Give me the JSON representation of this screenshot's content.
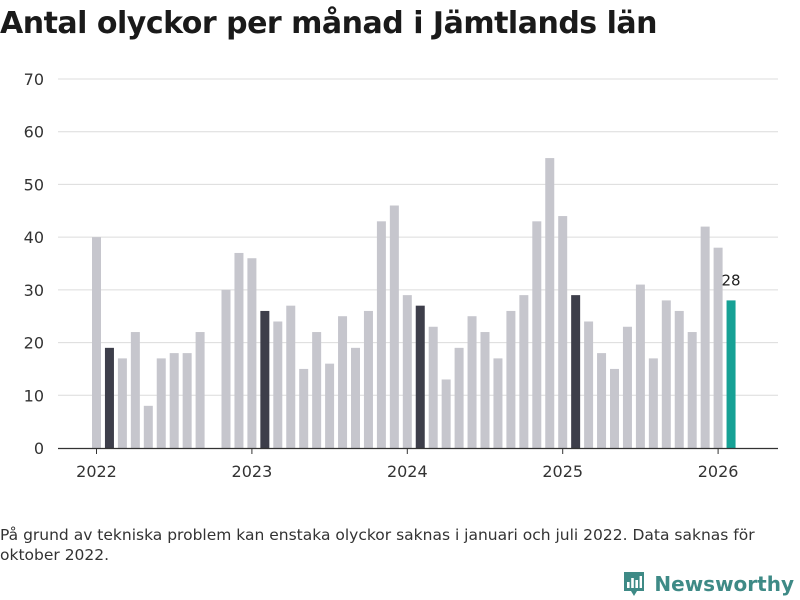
{
  "chart_data": {
    "type": "bar",
    "title": "Antal olyckor per månad i Jämtlands län",
    "xlabel": "",
    "ylabel": "",
    "ylim": [
      0,
      70
    ],
    "yticks": [
      0,
      10,
      20,
      30,
      40,
      50,
      60,
      70
    ],
    "xtick_labels": [
      {
        "label": "2022",
        "month_index": 0
      },
      {
        "label": "2023",
        "month_index": 12
      },
      {
        "label": "2024",
        "month_index": 24
      },
      {
        "label": "2025",
        "month_index": 36
      },
      {
        "label": "2026",
        "month_index": 48
      }
    ],
    "series": [
      {
        "name": "Antal olyckor",
        "values": [
          40,
          19,
          17,
          22,
          8,
          17,
          18,
          18,
          22,
          null,
          30,
          37,
          36,
          26,
          24,
          27,
          15,
          22,
          16,
          25,
          19,
          26,
          43,
          46,
          29,
          27,
          23,
          13,
          19,
          25,
          22,
          17,
          26,
          29,
          43,
          55,
          44,
          29,
          24,
          18,
          15,
          23,
          31,
          17,
          28,
          26,
          22,
          42,
          38,
          28
        ],
        "highlight_indices": [
          1,
          13,
          25,
          37
        ],
        "latest_index": 49
      }
    ],
    "annotations": [
      {
        "month_index": 49,
        "text": "28"
      }
    ],
    "colors": {
      "bar": "#c6c6cd",
      "highlight": "#3d3e4a",
      "latest": "#16a195",
      "grid": "#dcdcdc",
      "axis": "#333333"
    }
  },
  "footnote": "På grund av tekniska problem kan enstaka olyckor saknas i januari och juli 2022. Data saknas för oktober 2022.",
  "brand": {
    "name": "Newsworthy",
    "icon": "newsworthy-logo-icon",
    "color": "#3e8a86"
  }
}
